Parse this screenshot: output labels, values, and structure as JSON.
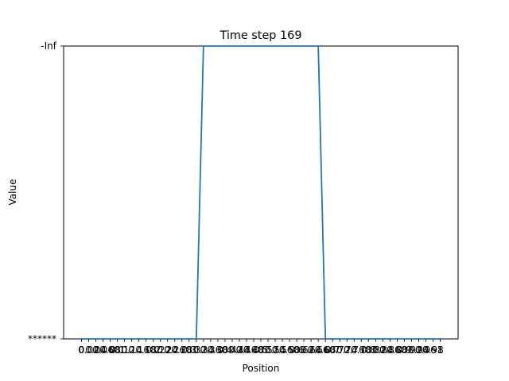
{
  "chart_data": {
    "type": "line",
    "title": "Time step 169",
    "xlabel": "Position",
    "ylabel": "Value",
    "x_tick_labels": [
      "0",
      "0.02",
      "0.04",
      "0.06",
      "0.08",
      "0.1",
      "0.12",
      "0.14",
      "0.16",
      "0.18",
      "0.2",
      "0.22",
      "0.24",
      "0.26",
      "0.28",
      "0.3",
      "0.32",
      "0.34",
      "0.36",
      "0.38",
      "0.4",
      "0.42",
      "0.44",
      "0.46",
      "0.48",
      "0.5",
      "0.52",
      "0.54",
      "0.56",
      "0.58",
      "0.6",
      "0.62",
      "0.64",
      "0.66",
      "0.68",
      "0.7",
      "0.72",
      "0.74",
      "0.76",
      "0.78",
      "0.8",
      "0.82",
      "0.84",
      "0.86",
      "0.88",
      "0.9",
      "0.92",
      "0.94",
      "0.96",
      "0.98",
      "1"
    ],
    "y_tick_labels": [
      "******",
      "-Inf"
    ],
    "xlim": [
      -0.05,
      1.05
    ],
    "ylim": [
      0,
      1
    ],
    "grid": false,
    "series": [
      {
        "color": "#1f77b4",
        "x": [
          0,
          0.32,
          0.34,
          0.36,
          0.64,
          0.66,
          0.68,
          1
        ],
        "y": [
          0,
          0,
          1,
          1,
          1,
          1,
          0,
          0
        ]
      }
    ]
  }
}
